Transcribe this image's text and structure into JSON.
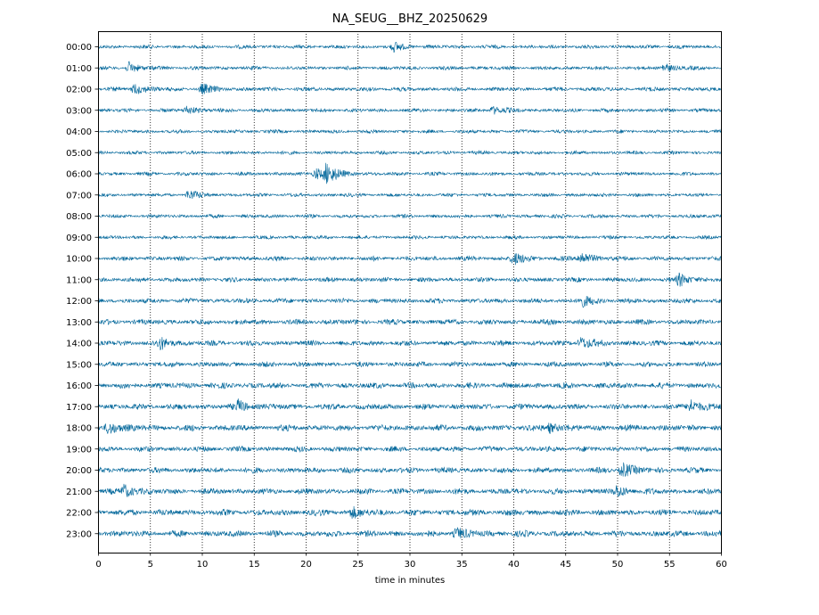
{
  "chart_data": {
    "type": "line",
    "title": "NA_SEUG__BHZ_20250629",
    "xlabel": "time in minutes",
    "ylabel": "",
    "xlim": [
      0,
      60
    ],
    "x_ticks": [
      0,
      5,
      10,
      15,
      20,
      25,
      30,
      35,
      40,
      45,
      50,
      55,
      60
    ],
    "grid": "vertical dotted at x ticks",
    "trace_color": "#00669a",
    "rows": [
      "00:00",
      "01:00",
      "02:00",
      "03:00",
      "04:00",
      "05:00",
      "06:00",
      "07:00",
      "08:00",
      "09:00",
      "10:00",
      "11:00",
      "12:00",
      "13:00",
      "14:00",
      "15:00",
      "16:00",
      "17:00",
      "18:00",
      "19:00",
      "20:00",
      "21:00",
      "22:00",
      "23:00"
    ],
    "base_amplitude": [
      0.18,
      0.18,
      0.2,
      0.18,
      0.17,
      0.17,
      0.18,
      0.17,
      0.18,
      0.17,
      0.22,
      0.22,
      0.24,
      0.26,
      0.26,
      0.25,
      0.28,
      0.28,
      0.3,
      0.26,
      0.27,
      0.28,
      0.3,
      0.3
    ],
    "events": [
      {
        "row": 0,
        "minute": 28.5,
        "amplitude": 0.4
      },
      {
        "row": 1,
        "minute": 3.0,
        "amplitude": 0.5
      },
      {
        "row": 1,
        "minute": 54.5,
        "amplitude": 0.4
      },
      {
        "row": 2,
        "minute": 3.5,
        "amplitude": 0.55
      },
      {
        "row": 2,
        "minute": 10.0,
        "amplitude": 0.45
      },
      {
        "row": 3,
        "minute": 8.5,
        "amplitude": 0.4
      },
      {
        "row": 3,
        "minute": 38.0,
        "amplitude": 0.4
      },
      {
        "row": 6,
        "minute": 21.0,
        "amplitude": 0.55
      },
      {
        "row": 6,
        "minute": 22.0,
        "amplitude": 0.9
      },
      {
        "row": 7,
        "minute": 8.7,
        "amplitude": 0.45
      },
      {
        "row": 10,
        "minute": 40.0,
        "amplitude": 0.6
      },
      {
        "row": 10,
        "minute": 46.5,
        "amplitude": 0.65
      },
      {
        "row": 11,
        "minute": 56.0,
        "amplitude": 0.6
      },
      {
        "row": 12,
        "minute": 46.5,
        "amplitude": 0.55
      },
      {
        "row": 14,
        "minute": 6.0,
        "amplitude": 0.5
      },
      {
        "row": 14,
        "minute": 46.5,
        "amplitude": 0.55
      },
      {
        "row": 17,
        "minute": 13.5,
        "amplitude": 0.5
      },
      {
        "row": 17,
        "minute": 57.0,
        "amplitude": 0.7
      },
      {
        "row": 18,
        "minute": 1.0,
        "amplitude": 0.65
      },
      {
        "row": 18,
        "minute": 43.5,
        "amplitude": 0.45
      },
      {
        "row": 20,
        "minute": 50.5,
        "amplitude": 0.7
      },
      {
        "row": 21,
        "minute": 2.5,
        "amplitude": 0.6
      },
      {
        "row": 21,
        "minute": 50.0,
        "amplitude": 0.5
      },
      {
        "row": 22,
        "minute": 24.5,
        "amplitude": 0.45
      },
      {
        "row": 23,
        "minute": 34.5,
        "amplitude": 0.45
      }
    ]
  }
}
